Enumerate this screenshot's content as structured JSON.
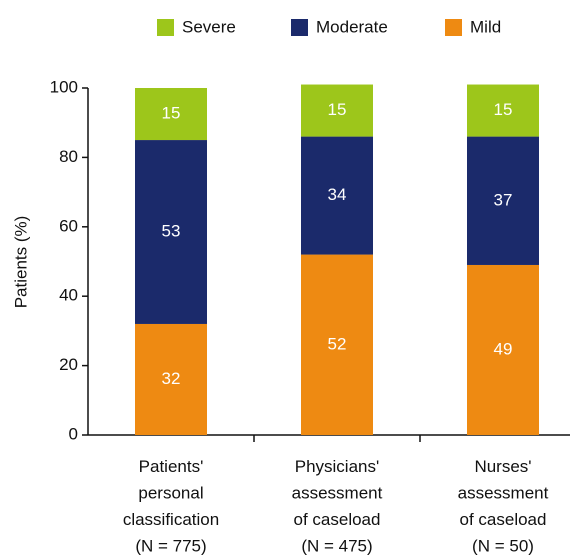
{
  "chart_data": {
    "type": "stacked_bar",
    "categories": [
      "Patients'\npersonal\nclassification\n(N = 775)",
      "Physicians'\nassessment\nof caseload\n(N = 475)",
      "Nurses'\nassessment\nof caseload\n(N = 50)"
    ],
    "series": [
      {
        "name": "Severe",
        "color": "#9dc61b",
        "values": [
          15,
          15,
          15
        ]
      },
      {
        "name": "Moderate",
        "color": "#1b2a6b",
        "values": [
          53,
          34,
          37
        ]
      },
      {
        "name": "Mild",
        "color": "#ee8a12",
        "values": [
          32,
          52,
          49
        ]
      }
    ],
    "y_label": "Patients (%)",
    "ylim": [
      0,
      100
    ],
    "yticks": [
      0,
      20,
      40,
      60,
      80,
      100
    ]
  }
}
